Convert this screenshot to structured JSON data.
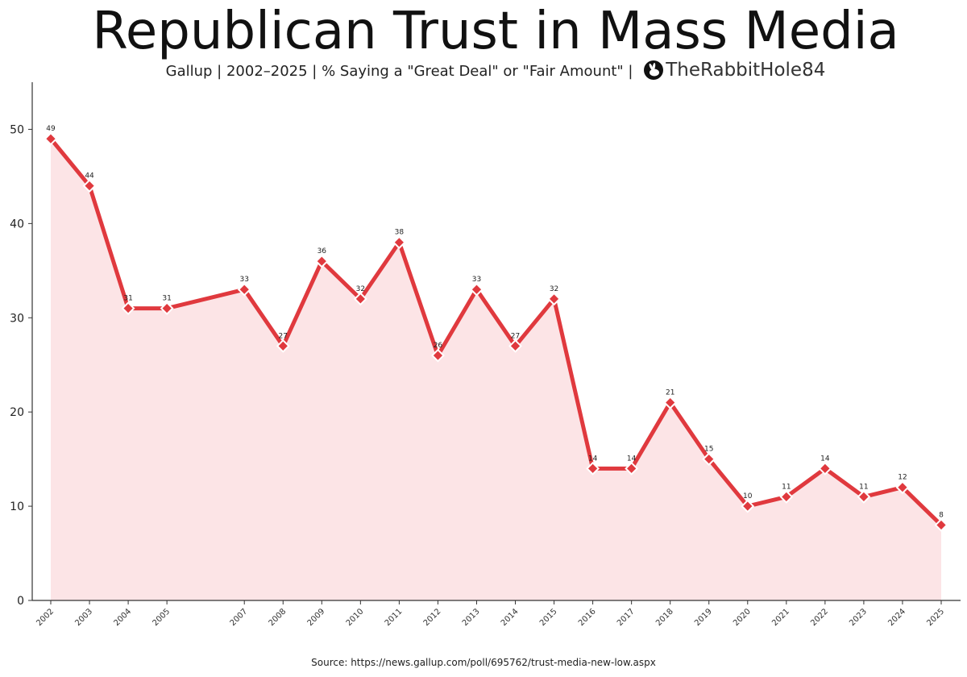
{
  "title": "Republican Trust in Mass Media",
  "subtitle": "Gallup | 2002–2025 | % Saying a \"Great Deal\" or \"Fair Amount\" |",
  "handle": "TheRabbitHole84",
  "source": "Source: https://news.gallup.com/poll/695762/trust-media-new-low.aspx",
  "colors": {
    "line": "#e0393e",
    "fill": "#fce4e6",
    "axis": "#333333"
  },
  "chart_data": {
    "type": "area",
    "x": [
      2002,
      2003,
      2004,
      2005,
      2007,
      2008,
      2009,
      2010,
      2011,
      2012,
      2013,
      2014,
      2015,
      2016,
      2017,
      2018,
      2019,
      2020,
      2021,
      2022,
      2023,
      2024,
      2025
    ],
    "x_labels": [
      "2002",
      "2003",
      "2004",
      "2005",
      "2007",
      "2008",
      "2009",
      "2010",
      "2011",
      "2012",
      "2013",
      "2014",
      "2015",
      "2016",
      "2017",
      "2018",
      "2019",
      "2020",
      "2021",
      "2022",
      "2023",
      "2024",
      "2025"
    ],
    "series": [
      {
        "values": [
          49,
          44,
          31,
          31,
          33,
          27,
          36,
          32,
          38,
          26,
          33,
          27,
          32,
          14,
          14,
          21,
          15,
          10,
          11,
          14,
          11,
          12,
          8
        ]
      }
    ],
    "y_ticks": [
      "0",
      "10",
      "20",
      "30",
      "40",
      "50"
    ],
    "ylim": [
      0,
      55
    ],
    "marker": "diamond",
    "data_labels": true,
    "grid": false
  }
}
